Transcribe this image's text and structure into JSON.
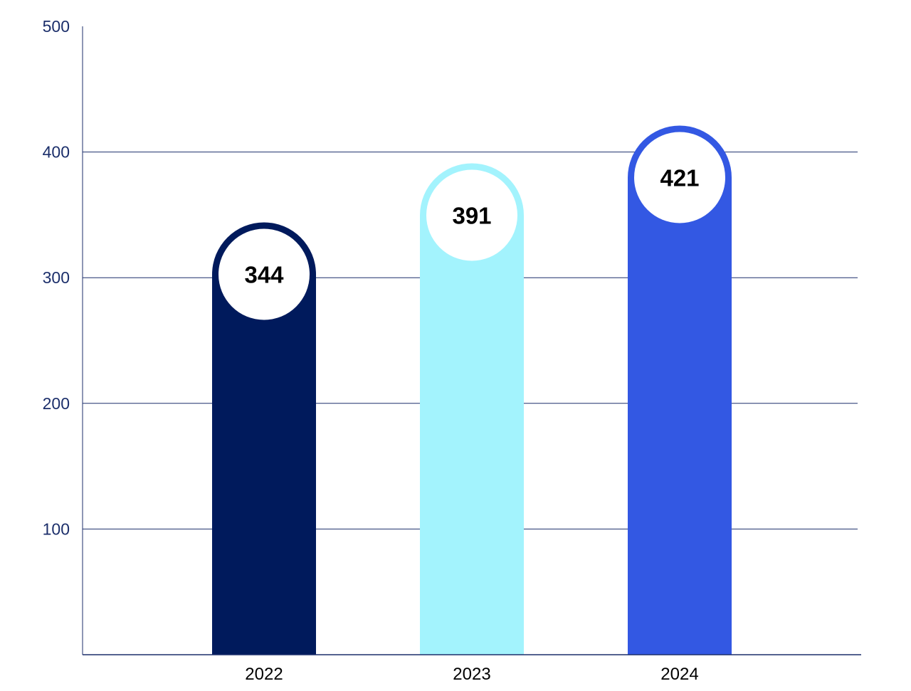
{
  "chart_data": {
    "type": "bar",
    "categories": [
      "2022",
      "2023",
      "2024"
    ],
    "values": [
      344,
      391,
      421
    ],
    "data_labels": [
      "344",
      "391",
      "421"
    ],
    "bar_colors": [
      "#001a5c",
      "#a3f3fd",
      "#3358e3"
    ],
    "ylim": [
      0,
      500
    ],
    "y_ticks": [
      100,
      200,
      300,
      400,
      500
    ],
    "y_tick_labels": [
      "100",
      "200",
      "300",
      "400",
      "500"
    ],
    "grid": true,
    "axis_color": "#1c2f6b"
  }
}
